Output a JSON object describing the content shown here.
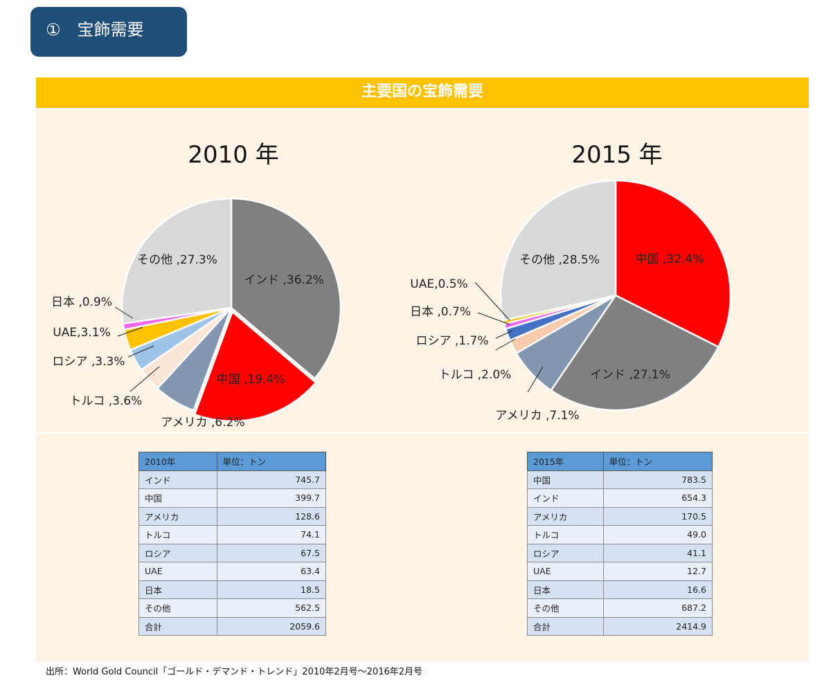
{
  "section": {
    "number": "①",
    "label": "宝飾需要"
  },
  "banner": {
    "title": "主要国の宝飾需要"
  },
  "chart_data": [
    {
      "type": "pie",
      "title": "2010 年",
      "slices": [
        {
          "label": "インド",
          "value": 36.2,
          "color": "#808080",
          "text": "インド ,36.2%"
        },
        {
          "label": "中国",
          "value": 19.4,
          "color": "#ff0000",
          "text": "中国 ,19.4%"
        },
        {
          "label": "アメリカ",
          "value": 6.2,
          "color": "#8497b0",
          "text": "アメリカ ,6.2%"
        },
        {
          "label": "トルコ",
          "value": 3.6,
          "color": "#fbe5d6",
          "text": "トルコ ,3.6%"
        },
        {
          "label": "ロシア",
          "value": 3.3,
          "color": "#9dc3e6",
          "text": "ロシア ,3.3%"
        },
        {
          "label": "UAE",
          "value": 3.1,
          "color": "#ffc000",
          "text": "UAE,3.1%"
        },
        {
          "label": "日本",
          "value": 0.9,
          "color": "#ee66ee",
          "text": "日本 ,0.9%"
        },
        {
          "label": "その他",
          "value": 27.3,
          "color": "#d9d9d9",
          "text": "その他 ,27.3%"
        }
      ]
    },
    {
      "type": "pie",
      "title": "2015 年",
      "slices": [
        {
          "label": "中国",
          "value": 32.4,
          "color": "#ff0000",
          "text": "中国 ,32.4%"
        },
        {
          "label": "インド",
          "value": 27.1,
          "color": "#808080",
          "text": "インド ,27.1%"
        },
        {
          "label": "アメリカ",
          "value": 7.1,
          "color": "#8497b0",
          "text": "アメリカ ,7.1%"
        },
        {
          "label": "トルコ",
          "value": 2.0,
          "color": "#f8cbad",
          "text": "トルコ ,2.0%"
        },
        {
          "label": "ロシア",
          "value": 1.7,
          "color": "#4472c4",
          "text": "ロシア ,1.7%"
        },
        {
          "label": "日本",
          "value": 0.7,
          "color": "#ee66ee",
          "text": "日本 ,0.7%"
        },
        {
          "label": "UAE",
          "value": 0.5,
          "color": "#ffc000",
          "text": "UAE,0.5%"
        },
        {
          "label": "その他",
          "value": 28.5,
          "color": "#d9d9d9",
          "text": "その他 ,28.5%"
        }
      ]
    }
  ],
  "tables": [
    {
      "header": [
        "2010年",
        "単位：トン"
      ],
      "rows": [
        [
          "インド",
          "745.7"
        ],
        [
          "中国",
          "399.7"
        ],
        [
          "アメリカ",
          "128.6"
        ],
        [
          "トルコ",
          "74.1"
        ],
        [
          "ロシア",
          "67.5"
        ],
        [
          "UAE",
          "63.4"
        ],
        [
          "日本",
          "18.5"
        ],
        [
          "その他",
          "562.5"
        ],
        [
          "合計",
          "2059.6"
        ]
      ]
    },
    {
      "header": [
        "2015年",
        "単位：トン"
      ],
      "rows": [
        [
          "中国",
          "783.5"
        ],
        [
          "インド",
          "654.3"
        ],
        [
          "アメリカ",
          "170.5"
        ],
        [
          "トルコ",
          "49.0"
        ],
        [
          "ロシア",
          "41.1"
        ],
        [
          "UAE",
          "12.7"
        ],
        [
          "日本",
          "16.6"
        ],
        [
          "その他",
          "687.2"
        ],
        [
          "合計",
          "2414.9"
        ]
      ]
    }
  ],
  "source": "出所：World Gold Council「ゴールド・デマンド・トレンド」2010年2月号～2016年2月号"
}
